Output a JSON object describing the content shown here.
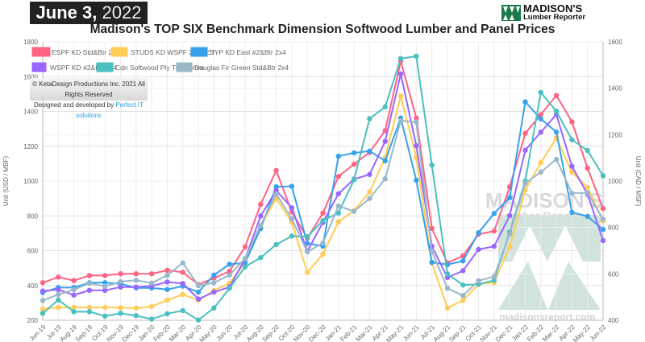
{
  "header": {
    "date_bold": "June 3,",
    "date_year": "2022",
    "logo_line1": "MADISON'S",
    "logo_line2": "Lumber Reporter"
  },
  "copyright": {
    "line1": "© KetaDesign Productions Inc. 2021 All Rights Reserved",
    "line2_prefix": "Designed and developed by",
    "link": "Perfect IT solutions"
  },
  "watermark": {
    "line1": "MADISON'S",
    "line2": "Lumber Reporter",
    "site": "madisonsreport.com"
  },
  "chart_data": {
    "type": "line",
    "title": "Madison's TOP SIX Benchmark Dimension Softwood Lumber and Panel Prices",
    "ylabel": "Unit (USD / MBF)",
    "y2label": "Unit (CAD / MSF)",
    "ylim": [
      200,
      1800
    ],
    "y2lim": [
      400,
      1600
    ],
    "yticks": [
      200,
      400,
      600,
      800,
      1000,
      1200,
      1400,
      1600,
      1800
    ],
    "y2ticks": [
      400,
      600,
      800,
      1000,
      1200,
      1400,
      1600
    ],
    "grid": true,
    "legend_position": "top-left",
    "categories": [
      "Jun-19",
      "Jul-19",
      "Aug-19",
      "Sep-19",
      "Oct-19",
      "Nov-19",
      "Dec-19",
      "Jan-20",
      "Feb-20",
      "Mar-20",
      "Apr-20",
      "May-20",
      "Jun-20",
      "Jul-20",
      "Aug-20",
      "Sep-20",
      "Oct-20",
      "Nov-20",
      "Dec-20",
      "Jan-21",
      "Feb-21",
      "Mar-21",
      "Apr-21",
      "May-21",
      "Jun-21",
      "Jul-21",
      "Aug-21",
      "Sep-21",
      "Oct-21",
      "Nov-21",
      "Dec-21",
      "Jan-22",
      "Feb-22",
      "Mar-22",
      "Apr-22",
      "May-22",
      "Jun-22"
    ],
    "series": [
      {
        "name": "ESPF KD Std&Btr 2x4",
        "color": "#ff6384",
        "axis": "left",
        "values": [
          416,
          448,
          428,
          457,
          457,
          467,
          467,
          467,
          487,
          476,
          405,
          442,
          482,
          622,
          866,
          1061,
          823,
          672,
          816,
          1026,
          1097,
          1165,
          1290,
          1689,
          1362,
          728,
          530,
          570,
          695,
          712,
          966,
          1274,
          1382,
          1492,
          1340,
          1074,
          842
        ]
      },
      {
        "name": "STUDS KD WSPF 2x4 PET",
        "color": "#ffcd56",
        "axis": "left",
        "values": [
          265,
          274,
          274,
          274,
          274,
          272,
          270,
          279,
          316,
          348,
          316,
          371,
          413,
          530,
          742,
          900,
          764,
          474,
          580,
          766,
          830,
          937,
          1134,
          1489,
          1136,
          530,
          271,
          314,
          407,
          417,
          622,
          949,
          1106,
          1248,
          1052,
          963,
          772
        ]
      },
      {
        "name": "SYP KD East #2&Btr 2x4",
        "color": "#36a2eb",
        "axis": "left",
        "values": [
          360,
          388,
          388,
          416,
          416,
          410,
          386,
          386,
          377,
          396,
          362,
          460,
          522,
          530,
          727,
          967,
          970,
          642,
          626,
          1143,
          1162,
          1172,
          1116,
          1362,
          1005,
          533,
          520,
          541,
          703,
          814,
          904,
          1455,
          1357,
          1282,
          820,
          797,
          722
        ]
      },
      {
        "name": "WSPF KD #2&Btr 2x4",
        "color": "#9966ff",
        "axis": "left",
        "values": [
          368,
          376,
          345,
          372,
          372,
          391,
          391,
          397,
          420,
          411,
          322,
          362,
          391,
          553,
          799,
          946,
          846,
          597,
          762,
          927,
          1011,
          1038,
          1228,
          1616,
          1203,
          626,
          445,
          485,
          607,
          625,
          801,
          1177,
          1281,
          1382,
          1085,
          926,
          658
        ]
      },
      {
        "name": "Cdn Softwood Ply TO 9.5mm",
        "color": "#4bc0c0",
        "axis": "right",
        "values": [
          430,
          488,
          437,
          437,
          418,
          430,
          420,
          405,
          428,
          442,
          401,
          453,
          538,
          630,
          670,
          726,
          763,
          760,
          830,
          862,
          1006,
          1269,
          1320,
          1528,
          1538,
          1069,
          600,
          552,
          555,
          572,
          780,
          1000,
          1382,
          1301,
          1178,
          1132,
          1023
        ]
      },
      {
        "name": "Douglas Fir Green Std&Btr 2x4",
        "color": "#9ab8c9",
        "axis": "left",
        "values": [
          314,
          348,
          376,
          413,
          395,
          422,
          430,
          414,
          458,
          530,
          399,
          416,
          460,
          555,
          746,
          926,
          783,
          593,
          644,
          857,
          826,
          900,
          1013,
          1347,
          1339,
          597,
          384,
          342,
          427,
          451,
          696,
          987,
          1052,
          1125,
          930,
          933,
          780
        ]
      }
    ]
  }
}
